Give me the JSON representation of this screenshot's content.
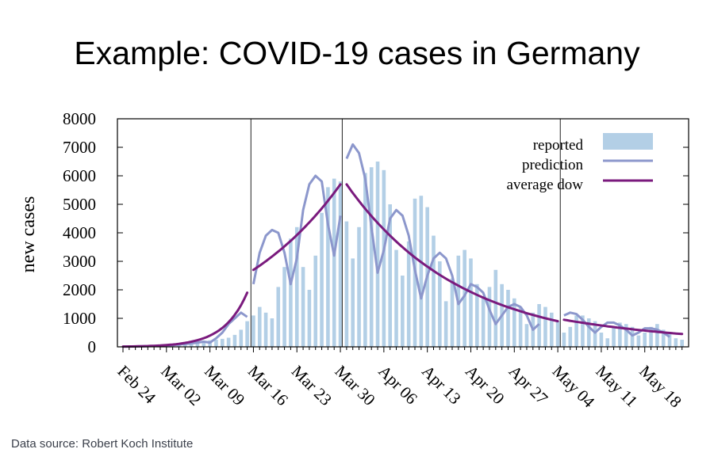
{
  "title": "Example: COVID-19 cases in Germany",
  "source": "Data source: Robert Koch Institute",
  "chart_data": {
    "type": "bar",
    "title": "Example: COVID-19 cases in Germany",
    "xlabel": "",
    "ylabel": "new cases",
    "ylim": [
      0,
      8000
    ],
    "yticks": [
      0,
      1000,
      2000,
      3000,
      4000,
      5000,
      6000,
      7000,
      8000
    ],
    "x_start": "Feb 24",
    "x_days": 91,
    "xticks": [
      {
        "day": 0,
        "label": "Feb 24"
      },
      {
        "day": 7,
        "label": "Mar 02"
      },
      {
        "day": 14,
        "label": "Mar 09"
      },
      {
        "day": 21,
        "label": "Mar 16"
      },
      {
        "day": 28,
        "label": "Mar 23"
      },
      {
        "day": 35,
        "label": "Mar 30"
      },
      {
        "day": 42,
        "label": "Apr 06"
      },
      {
        "day": 49,
        "label": "Apr 13"
      },
      {
        "day": 56,
        "label": "Apr 20"
      },
      {
        "day": 63,
        "label": "Apr 27"
      },
      {
        "day": 70,
        "label": "May 04"
      },
      {
        "day": 77,
        "label": "May 11"
      },
      {
        "day": 84,
        "label": "May 18"
      }
    ],
    "breakpoints_day": [
      20.6,
      35.3,
      70.4
    ],
    "legend": {
      "position": "top-right",
      "entries": [
        "reported",
        "prediction",
        "average dow"
      ]
    },
    "colors": {
      "reported": "#b3cfe6",
      "prediction": "#8c97cc",
      "average_dow": "#7a1a7d",
      "axis": "#000000"
    },
    "series": [
      {
        "name": "reported",
        "kind": "bar",
        "values": [
          10,
          5,
          15,
          20,
          25,
          30,
          40,
          50,
          60,
          80,
          110,
          130,
          160,
          200,
          230,
          250,
          280,
          320,
          420,
          600,
          900,
          1100,
          1400,
          1200,
          1000,
          2100,
          2800,
          3800,
          4200,
          2800,
          2000,
          3200,
          4700,
          5600,
          5900,
          5800,
          4400,
          3100,
          4200,
          6100,
          6300,
          6500,
          6200,
          5000,
          3400,
          2500,
          3700,
          5200,
          5300,
          4900,
          3900,
          3000,
          1600,
          2400,
          3200,
          3400,
          3100,
          2200,
          1700,
          2100,
          2700,
          2200,
          2000,
          1700,
          1400,
          800,
          1200,
          1500,
          1400,
          1200,
          900,
          500,
          700,
          1100,
          1100,
          1000,
          900,
          500,
          300,
          700,
          850,
          800,
          700,
          400,
          500,
          700,
          800,
          600,
          500,
          300,
          250
        ],
        "_note": "daily values Feb 24 .. May 24"
      },
      {
        "name": "prediction",
        "kind": "line",
        "segments": [
          {
            "from_day": 0,
            "values": [
              10,
              10,
              15,
              20,
              25,
              30,
              40,
              50,
              60,
              80,
              100,
              120,
              150,
              180,
              150,
              300,
              500,
              800,
              1000,
              1200,
              1050
            ]
          },
          {
            "from_day": 21,
            "values": [
              2200,
              3300,
              3900,
              4100,
              4000,
              3300,
              2200,
              3100,
              4800,
              5700,
              6000,
              5800,
              4300,
              3200,
              4600
            ]
          },
          {
            "from_day": 36,
            "values": [
              6600,
              7100,
              6800,
              5900,
              4200,
              2600,
              3400,
              4500,
              4800,
              4600,
              3900,
              2700,
              1700,
              2500,
              3100,
              3300,
              3100,
              2500,
              1500,
              1800,
              2200,
              2100,
              1900,
              1300,
              800,
              1100,
              1400,
              1500,
              1400,
              1100,
              600,
              800
            ]
          },
          {
            "from_day": 71,
            "values": [
              1100,
              1200,
              1150,
              950,
              700,
              500,
              700,
              850,
              850,
              750,
              600,
              400,
              500,
              650,
              650,
              600,
              500,
              350
            ]
          }
        ]
      },
      {
        "name": "average dow",
        "kind": "line",
        "segments": [
          {
            "from_day": 0,
            "to_day": 20,
            "start": 10,
            "end": 1900,
            "growth": "exponential"
          },
          {
            "from_day": 21,
            "to_day": 35,
            "start": 2700,
            "end": 5700,
            "growth": "exponential"
          },
          {
            "from_day": 36,
            "to_day": 70,
            "start": 5700,
            "end": 900,
            "growth": "exponential"
          },
          {
            "from_day": 71,
            "to_day": 90,
            "start": 950,
            "end": 450,
            "growth": "exponential"
          }
        ]
      }
    ]
  }
}
